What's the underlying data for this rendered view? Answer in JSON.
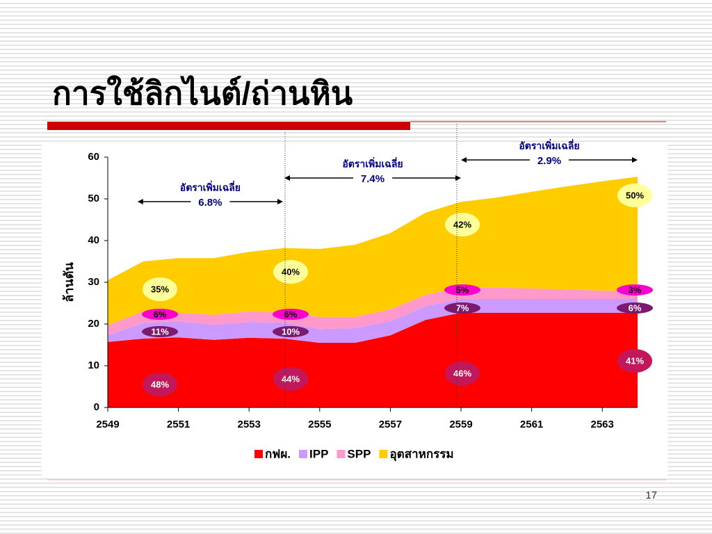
{
  "page_title": "การใช้ลิกไนต์/ถ่านหิน",
  "page_number": "17",
  "chart_data": {
    "type": "stacked-area",
    "y_label": "ล้านตัน",
    "x": [
      2549,
      2550,
      2551,
      2552,
      2553,
      2554,
      2555,
      2556,
      2557,
      2558,
      2559,
      2560,
      2561,
      2562,
      2563,
      2564
    ],
    "xlim": [
      2549,
      2564
    ],
    "xticks": [
      2549,
      2551,
      2553,
      2555,
      2557,
      2559,
      2561,
      2563
    ],
    "ylim": [
      0,
      60
    ],
    "yticks": [
      0,
      10,
      20,
      30,
      40,
      50,
      60
    ],
    "series": [
      {
        "name": "กฟผ.",
        "color": "#ff0000",
        "values": [
          15.7,
          16.5,
          16.8,
          16.2,
          16.7,
          16.5,
          15.5,
          15.5,
          17.3,
          21,
          22.7,
          22.7,
          22.7,
          22.7,
          22.7,
          22.7
        ],
        "share_labels": [
          "48%",
          "44%",
          "46%",
          "41%"
        ],
        "label_color": "#c2185b"
      },
      {
        "name": "IPP",
        "color": "#cc99ff",
        "values": [
          1.6,
          3.7,
          3.9,
          3.6,
          3.8,
          3.8,
          3.3,
          3.5,
          3.4,
          3.3,
          3.3,
          3.3,
          3.3,
          3.3,
          3.3,
          3.3
        ],
        "share_labels": [
          "11%",
          "10%",
          "7%",
          "6%"
        ],
        "label_color": "#7b1a6e"
      },
      {
        "name": "SPP",
        "color": "#ff99cc",
        "values": [
          2.4,
          2.8,
          2.0,
          2.4,
          2.5,
          2.5,
          2.9,
          2.7,
          2.8,
          2.7,
          2.7,
          2.7,
          2.5,
          2.3,
          2.0,
          1.8
        ],
        "share_labels": [
          "6%",
          "6%",
          "5%",
          "3%"
        ],
        "label_color": "#ff00cc"
      },
      {
        "name": "อุตสาหกรรม",
        "color": "#ffcc00",
        "values": [
          10.8,
          12,
          13.1,
          13.6,
          14.3,
          15.4,
          16.3,
          17.3,
          18.3,
          19.7,
          20.6,
          21.6,
          23.2,
          24.7,
          26.2,
          27.5
        ],
        "share_labels": [
          "35%",
          "40%",
          "42%",
          "50%"
        ],
        "label_color": "#ffff99"
      }
    ],
    "growth": [
      {
        "label": "อัตราเพิ่มเฉลี่ย",
        "rate": "6.8%",
        "from": 2550,
        "to": 2554
      },
      {
        "label": "อัตราเพิ่มเฉลี่ย",
        "rate": "7.4%",
        "from": 2554,
        "to": 2559
      },
      {
        "label": "อัตราเพิ่มเฉลี่ย",
        "rate": "2.9%",
        "from": 2559,
        "to": 2564
      }
    ]
  }
}
